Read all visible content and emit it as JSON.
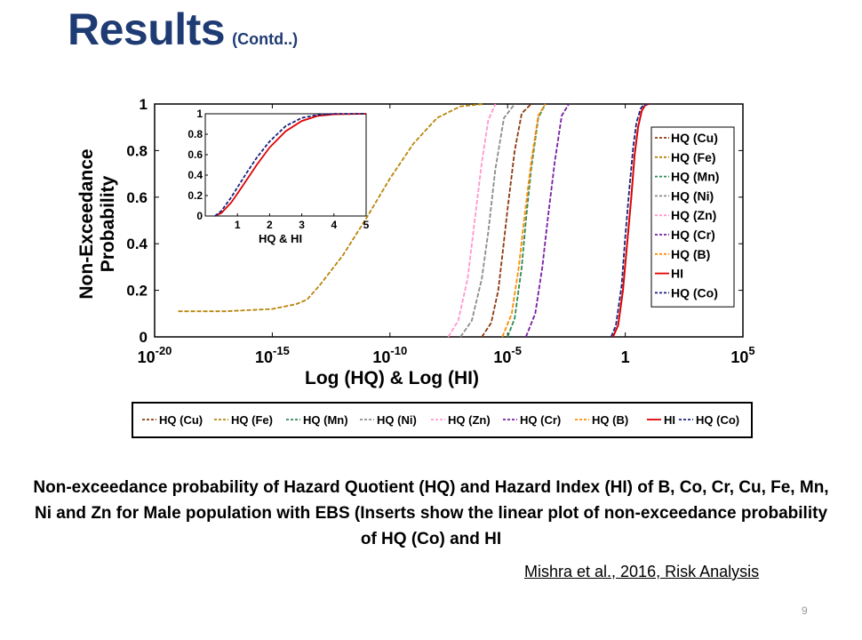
{
  "slide": {
    "title": "Results",
    "title_suffix": "(Contd..)",
    "caption": "Non-exceedance probability of Hazard Quotient (HQ) and Hazard Index (HI) of B, Co, Cr, Cu, Fe, Mn, Ni and Zn for Male population with EBS (Inserts show the linear plot of non-exceedance probability of HQ (Co) and HI",
    "citation": "Mishra et al., 2016, Risk Analysis",
    "page_number": "9"
  },
  "colors": {
    "title": "#1f3b73"
  },
  "chart_data": [
    {
      "type": "line",
      "xlabel": "Log (HQ) & Log (HI)",
      "ylabel": "Non-Exceedance Probability",
      "x_scale": "log10",
      "xlim": [
        1e-20,
        100000.0
      ],
      "ylim": [
        0,
        1
      ],
      "x_ticks": [
        {
          "base": "10",
          "exp": "-20"
        },
        {
          "base": "10",
          "exp": "-15"
        },
        {
          "base": "10",
          "exp": "-10"
        },
        {
          "base": "10",
          "exp": "-5"
        },
        {
          "base": "1",
          "exp": ""
        },
        {
          "base": "10",
          "exp": "5"
        }
      ],
      "y_ticks": [
        "0",
        "0.2",
        "0.4",
        "0.6",
        "0.8",
        "1"
      ],
      "legend_position": "right",
      "series": [
        {
          "name": "HQ (Cu)",
          "color": "#8b3a0e",
          "dash": "dashed",
          "x": [
            8e-07,
            2e-06,
            4e-06,
            6e-06,
            1e-05,
            2e-05,
            4e-05,
            0.0001
          ],
          "y": [
            0,
            0.06,
            0.2,
            0.35,
            0.55,
            0.8,
            0.96,
            1.0
          ]
        },
        {
          "name": "HQ (Fe)",
          "color": "#b8860b",
          "dash": "dashed",
          "x": [
            1e-19,
            1e-17,
            1e-16,
            1e-15,
            1e-14,
            3e-14,
            1e-13,
            1e-12,
            1e-11,
            1e-10,
            1e-09,
            1e-08,
            1e-07,
            1e-06
          ],
          "y": [
            0.11,
            0.11,
            0.115,
            0.12,
            0.14,
            0.16,
            0.22,
            0.35,
            0.51,
            0.68,
            0.83,
            0.94,
            0.99,
            1.0
          ]
        },
        {
          "name": "HQ (Mn)",
          "color": "#2e8b57",
          "dash": "dashed",
          "x": [
            1e-05,
            2e-05,
            4e-05,
            6e-05,
            0.0001,
            0.0002,
            0.0004
          ],
          "y": [
            0,
            0.08,
            0.3,
            0.5,
            0.72,
            0.94,
            1.0
          ]
        },
        {
          "name": "HQ (Ni)",
          "color": "#8c8c8c",
          "dash": "dashed",
          "x": [
            1e-07,
            3e-07,
            8e-07,
            1.5e-06,
            3e-06,
            7e-06,
            2e-05
          ],
          "y": [
            0,
            0.07,
            0.25,
            0.45,
            0.72,
            0.94,
            1.0
          ]
        },
        {
          "name": "HQ (Zn)",
          "color": "#ff99cc",
          "dash": "dashed",
          "x": [
            3e-08,
            8e-08,
            2e-07,
            4e-07,
            8e-07,
            1.5e-06,
            3e-06
          ],
          "y": [
            0,
            0.07,
            0.25,
            0.5,
            0.75,
            0.93,
            1.0
          ]
        },
        {
          "name": "HQ (Cr)",
          "color": "#7b1fa2",
          "dash": "dashed",
          "x": [
            6e-05,
            0.00015,
            0.0003,
            0.0005,
            0.001,
            0.002,
            0.004
          ],
          "y": [
            0,
            0.1,
            0.3,
            0.5,
            0.75,
            0.95,
            1.0
          ]
        },
        {
          "name": "HQ (B)",
          "color": "#ff8c00",
          "dash": "dashed",
          "x": [
            6e-06,
            1.5e-05,
            3e-05,
            5e-05,
            0.0001,
            0.0002,
            0.0004
          ],
          "y": [
            0,
            0.1,
            0.3,
            0.5,
            0.75,
            0.95,
            1.0
          ]
        },
        {
          "name": "HI",
          "color": "#e00000",
          "dash": "solid",
          "x": [
            0.3,
            0.5,
            0.8,
            1.2,
            1.8,
            2.5,
            3.5,
            5.0,
            7.0,
            10.0
          ],
          "y": [
            0,
            0.05,
            0.2,
            0.4,
            0.6,
            0.78,
            0.9,
            0.97,
            0.995,
            1.0
          ]
        },
        {
          "name": "HQ (Co)",
          "color": "#1a237e",
          "dash": "dashed",
          "x": [
            0.25,
            0.4,
            0.7,
            1.0,
            1.5,
            2.2,
            3.0,
            4.5,
            6.0,
            9.0
          ],
          "y": [
            0,
            0.05,
            0.22,
            0.43,
            0.64,
            0.82,
            0.92,
            0.98,
            0.996,
            1.0
          ]
        }
      ]
    },
    {
      "type": "line",
      "xlabel": "HQ & HI",
      "ylabel": "",
      "xlim": [
        0,
        5
      ],
      "ylim": [
        0,
        1
      ],
      "x_ticks": [
        "1",
        "2",
        "3",
        "4",
        "5"
      ],
      "y_ticks": [
        "0",
        "0.2",
        "0.4",
        "0.6",
        "0.8",
        "1"
      ],
      "series": [
        {
          "name": "HI",
          "color": "#e00000",
          "dash": "solid",
          "x": [
            0.3,
            0.5,
            0.8,
            1.0,
            1.3,
            1.6,
            2.0,
            2.5,
            3.0,
            3.5,
            4.0,
            5.0
          ],
          "y": [
            0,
            0.03,
            0.13,
            0.22,
            0.36,
            0.5,
            0.67,
            0.83,
            0.93,
            0.98,
            0.995,
            1.0
          ]
        },
        {
          "name": "HQ (Co)",
          "color": "#1a237e",
          "dash": "dashed",
          "x": [
            0.3,
            0.5,
            0.8,
            1.0,
            1.3,
            1.6,
            2.0,
            2.5,
            3.0,
            3.5,
            4.0,
            5.0
          ],
          "y": [
            0,
            0.05,
            0.18,
            0.28,
            0.43,
            0.57,
            0.73,
            0.88,
            0.96,
            0.99,
            1.0,
            1.0
          ]
        }
      ]
    }
  ]
}
